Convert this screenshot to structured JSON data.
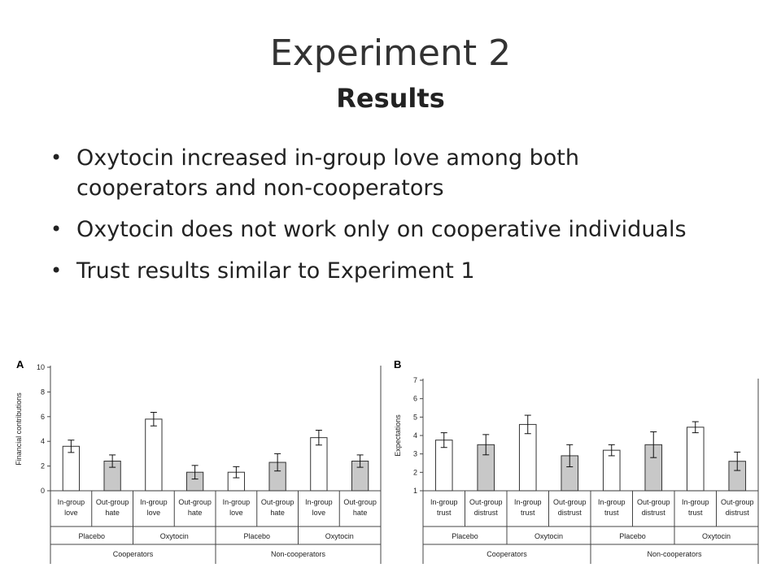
{
  "slide": {
    "title": "Experiment 2",
    "subtitle": "Results",
    "bullets": [
      {
        "text": "Oxytocin increased in-group love among both cooperators and non-cooperators"
      },
      {
        "text": "Oxytocin does not work only on cooperative individuals"
      },
      {
        "text": "Trust results similar to Experiment 1"
      }
    ]
  },
  "colors": {
    "open_bar": "#ffffff",
    "filled_bar": "#c8c8c8",
    "axis": "#444444"
  },
  "chart_data": [
    {
      "panel_label": "A",
      "type": "bar",
      "ylabel": "Financial contributions",
      "ylim": [
        0,
        10
      ],
      "yticks": [
        0,
        2,
        4,
        6,
        8,
        10
      ],
      "bars": [
        {
          "label1": "In-group",
          "label2": "love",
          "value": 3.6,
          "error": 0.5,
          "fill": "open"
        },
        {
          "label1": "Out-group",
          "label2": "hate",
          "value": 2.4,
          "error": 0.5,
          "fill": "filled"
        },
        {
          "label1": "In-group",
          "label2": "love",
          "value": 5.8,
          "error": 0.55,
          "fill": "open"
        },
        {
          "label1": "Out-group",
          "label2": "hate",
          "value": 1.5,
          "error": 0.55,
          "fill": "filled"
        },
        {
          "label1": "In-group",
          "label2": "love",
          "value": 1.5,
          "error": 0.45,
          "fill": "open"
        },
        {
          "label1": "Out-group",
          "label2": "hate",
          "value": 2.3,
          "error": 0.7,
          "fill": "filled"
        },
        {
          "label1": "In-group",
          "label2": "love",
          "value": 4.3,
          "error": 0.6,
          "fill": "open"
        },
        {
          "label1": "Out-group",
          "label2": "hate",
          "value": 2.4,
          "error": 0.5,
          "fill": "filled"
        }
      ],
      "conditions": [
        "Placebo",
        "Oxytocin",
        "Placebo",
        "Oxytocin"
      ],
      "groups": [
        "Cooperators",
        "Non-cooperators"
      ]
    },
    {
      "panel_label": "B",
      "type": "bar",
      "ylabel": "Expectations",
      "ylim": [
        1,
        7
      ],
      "yticks": [
        1,
        2,
        3,
        4,
        5,
        6,
        7
      ],
      "bars": [
        {
          "label1": "In-group",
          "label2": "trust",
          "value": 3.75,
          "error": 0.4,
          "fill": "open"
        },
        {
          "label1": "Out-group",
          "label2": "distrust",
          "value": 3.5,
          "error": 0.55,
          "fill": "filled"
        },
        {
          "label1": "In-group",
          "label2": "trust",
          "value": 4.6,
          "error": 0.5,
          "fill": "open"
        },
        {
          "label1": "Out-group",
          "label2": "distrust",
          "value": 2.9,
          "error": 0.6,
          "fill": "filled"
        },
        {
          "label1": "In-group",
          "label2": "trust",
          "value": 3.2,
          "error": 0.3,
          "fill": "open"
        },
        {
          "label1": "Out-group",
          "label2": "distrust",
          "value": 3.5,
          "error": 0.7,
          "fill": "filled"
        },
        {
          "label1": "In-group",
          "label2": "trust",
          "value": 4.45,
          "error": 0.3,
          "fill": "open"
        },
        {
          "label1": "Out-group",
          "label2": "distrust",
          "value": 2.6,
          "error": 0.5,
          "fill": "filled"
        }
      ],
      "conditions": [
        "Placebo",
        "Oxytocin",
        "Placebo",
        "Oxytocin"
      ],
      "groups": [
        "Cooperators",
        "Non-cooperators"
      ]
    }
  ]
}
